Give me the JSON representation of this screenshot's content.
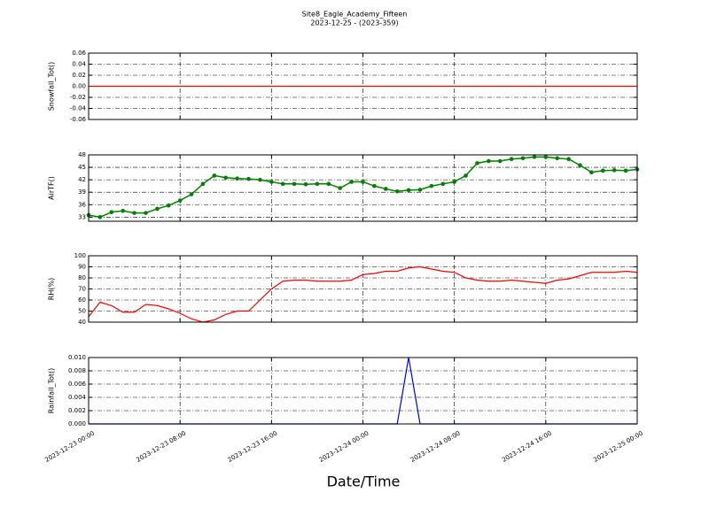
{
  "title": "Site8_Eagle_Academy_Fifteen",
  "subtitle": "2023-12-25 - (2023-359)",
  "time_axis": {
    "xlabel": "Date/Time",
    "xlim": [
      "2023-12-23 00:00",
      "2023-12-25 00:00"
    ],
    "xticks": [
      "2023-12-23 00:00",
      "2023-12-23 08:00",
      "2023-12-23 16:00",
      "2023-12-24 00:00",
      "2023-12-24 08:00",
      "2023-12-24 16:00",
      "2023-12-25 00:00"
    ],
    "x": [
      "2023-12-23 00:00",
      "2023-12-23 01:00",
      "2023-12-23 02:00",
      "2023-12-23 03:00",
      "2023-12-23 04:00",
      "2023-12-23 05:00",
      "2023-12-23 06:00",
      "2023-12-23 07:00",
      "2023-12-23 08:00",
      "2023-12-23 09:00",
      "2023-12-23 10:00",
      "2023-12-23 11:00",
      "2023-12-23 12:00",
      "2023-12-23 13:00",
      "2023-12-23 14:00",
      "2023-12-23 15:00",
      "2023-12-23 16:00",
      "2023-12-23 17:00",
      "2023-12-23 18:00",
      "2023-12-23 19:00",
      "2023-12-23 20:00",
      "2023-12-23 21:00",
      "2023-12-23 22:00",
      "2023-12-23 23:00",
      "2023-12-24 00:00",
      "2023-12-24 01:00",
      "2023-12-24 02:00",
      "2023-12-24 03:00",
      "2023-12-24 04:00",
      "2023-12-24 05:00",
      "2023-12-24 06:00",
      "2023-12-24 07:00",
      "2023-12-24 08:00",
      "2023-12-24 09:00",
      "2023-12-24 10:00",
      "2023-12-24 11:00",
      "2023-12-24 12:00",
      "2023-12-24 13:00",
      "2023-12-24 14:00",
      "2023-12-24 15:00",
      "2023-12-24 16:00",
      "2023-12-24 17:00",
      "2023-12-24 18:00",
      "2023-12-24 19:00",
      "2023-12-24 20:00",
      "2023-12-24 21:00",
      "2023-12-24 22:00",
      "2023-12-24 23:00",
      "2023-12-25 00:00"
    ]
  },
  "chart_data": [
    {
      "type": "line",
      "ylabel": "Snowfall_Tot()",
      "ylim": [
        -0.06,
        0.06
      ],
      "grid": true,
      "yticks": [
        -0.06,
        -0.04,
        -0.02,
        {
          "value": 0,
          "label": "0.00"
        },
        0.02,
        0.04,
        0.06
      ],
      "series": [
        {
          "color": "#ff0000",
          "values": [
            0,
            0,
            0,
            0,
            0,
            0,
            0,
            0,
            0,
            0,
            0,
            0,
            0,
            0,
            0,
            0,
            0,
            0,
            0,
            0,
            0,
            0,
            0,
            0,
            0,
            0,
            0,
            0,
            0,
            0,
            0,
            0,
            0,
            0,
            0,
            0,
            0,
            0,
            0,
            0,
            0,
            0,
            0,
            0,
            0,
            0,
            0,
            0,
            0
          ]
        }
      ]
    },
    {
      "type": "line",
      "ylabel": "AirTF()",
      "ylim": [
        32,
        48
      ],
      "grid": true,
      "yticks": [
        33,
        36,
        39,
        42,
        45,
        48
      ],
      "series": [
        {
          "color": "#008000",
          "marker": "o",
          "values": [
            33.5,
            33,
            34.2,
            34.5,
            34,
            34,
            35,
            35.8,
            37,
            38.5,
            41,
            43,
            42.5,
            42.3,
            42.2,
            42,
            41.5,
            41,
            41,
            40.9,
            41,
            41,
            40,
            41.5,
            41.5,
            40.5,
            39.8,
            39.2,
            39.5,
            39.6,
            40.5,
            41,
            41.5,
            43,
            46,
            46.5,
            46.5,
            47,
            47.2,
            47.5,
            47.5,
            47.2,
            47,
            45.5,
            43.8,
            44.2,
            44.3,
            44.2,
            44.5
          ]
        }
      ]
    },
    {
      "type": "line",
      "ylabel": "RH(%)",
      "ylim": [
        40,
        100
      ],
      "grid": true,
      "yticks": [
        40,
        50,
        60,
        70,
        80,
        90,
        100
      ],
      "series": [
        {
          "color": "#ff0000",
          "values": [
            45,
            58,
            55,
            49,
            49,
            56,
            55,
            52,
            48,
            43,
            40,
            42,
            47,
            50,
            50,
            60,
            70,
            77,
            78,
            78,
            77,
            77,
            77,
            78,
            83,
            84,
            86,
            86,
            89,
            90,
            88,
            86,
            85,
            80,
            78,
            77,
            77,
            78,
            77,
            76,
            75,
            78,
            79,
            82,
            85,
            85,
            85,
            86,
            85
          ]
        }
      ]
    },
    {
      "type": "line",
      "ylabel": "Rainfall_Tot()",
      "ylim": [
        0,
        0.01
      ],
      "grid": true,
      "yticks": [
        {
          "value": 0,
          "label": "0.000"
        },
        {
          "value": 0.002,
          "label": "0.002"
        },
        {
          "value": 0.004,
          "label": "0.004"
        },
        {
          "value": 0.006,
          "label": "0.006"
        },
        {
          "value": 0.008,
          "label": "0.008"
        },
        {
          "value": 0.01,
          "label": "0.010"
        }
      ],
      "series": [
        {
          "color": "#0000ff",
          "values": [
            0,
            0,
            0,
            0,
            0,
            0,
            0,
            0,
            0,
            0,
            0,
            0,
            0,
            0,
            0,
            0,
            0,
            0,
            0,
            0,
            0,
            0,
            0,
            0,
            0,
            0,
            0,
            0,
            0.01,
            0,
            0,
            0,
            0,
            0,
            0,
            0,
            0,
            0,
            0,
            0,
            0,
            0,
            0,
            0,
            0,
            0,
            0,
            0,
            0
          ]
        }
      ]
    }
  ]
}
